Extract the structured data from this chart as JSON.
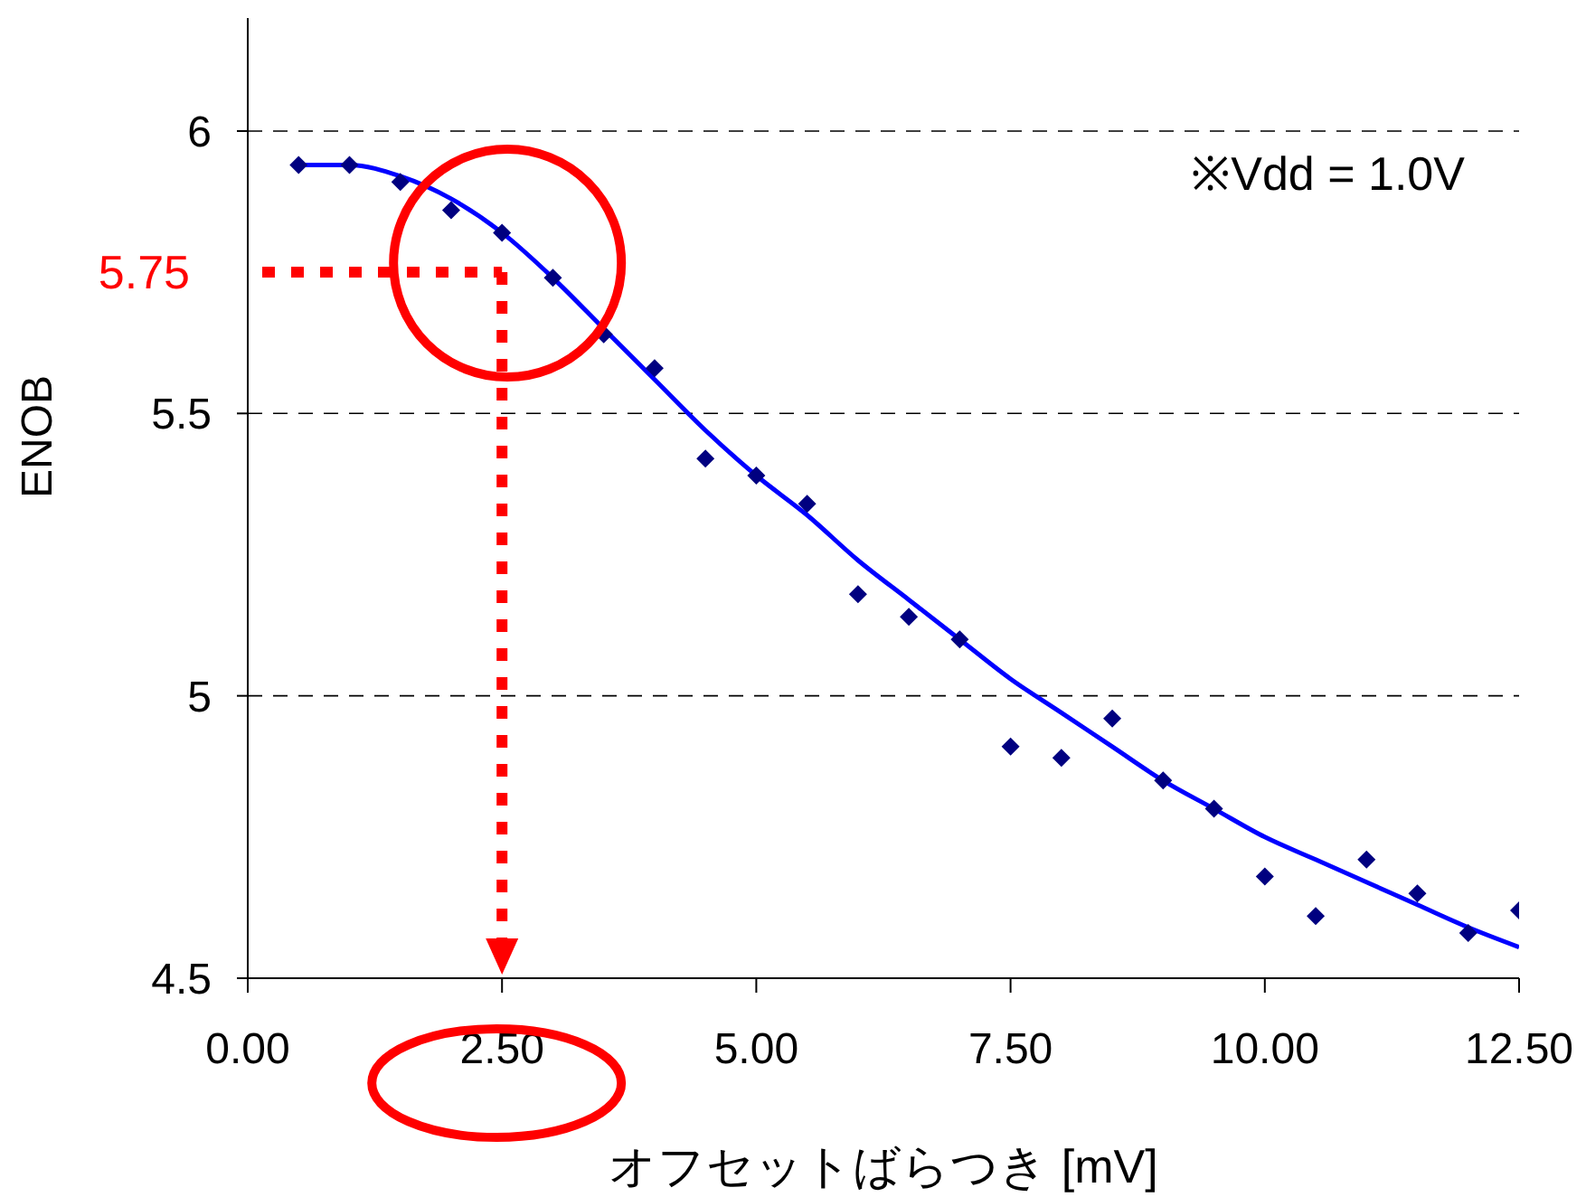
{
  "chart_data": {
    "type": "scatter",
    "xlabel": "オフセットばらつき [mV]",
    "ylabel": "ENOB",
    "xlim": [
      0,
      12.5
    ],
    "xticks": [
      {
        "value": 0,
        "label": "0.00"
      },
      {
        "value": 2.5,
        "label": "2.50"
      },
      {
        "value": 5,
        "label": "5.00"
      },
      {
        "value": 7.5,
        "label": "7.50"
      },
      {
        "value": 10,
        "label": "10.00"
      },
      {
        "value": 12.5,
        "label": "12.50"
      }
    ],
    "ylim": [
      4.5,
      6.2
    ],
    "yticks": [
      4.5,
      5,
      5.5,
      6
    ],
    "grid": "y",
    "marker": "diamond",
    "series": [
      {
        "color": "#000080",
        "x": [
          0.5,
          1,
          1.5,
          2,
          2.5,
          3,
          3.5,
          4,
          4.5,
          5,
          5.5,
          6,
          6.5,
          7,
          7.5,
          8,
          8.5,
          9,
          9.5,
          10,
          10.5,
          11,
          11.5,
          12,
          12.5
        ],
        "values": [
          5.94,
          5.94,
          5.91,
          5.86,
          5.82,
          5.74,
          5.64,
          5.58,
          5.42,
          5.39,
          5.34,
          5.18,
          5.14,
          5.1,
          4.91,
          4.89,
          4.96,
          4.85,
          4.8,
          4.68,
          4.61,
          4.71,
          4.65,
          4.58,
          4.62
        ]
      },
      {
        "type": "line",
        "color": "#0000ff",
        "marker": "none",
        "x": [
          0.5,
          1,
          1.5,
          2,
          2.5,
          3,
          3.5,
          4,
          4.5,
          5,
          5.5,
          6,
          6.5,
          7,
          7.5,
          8,
          8.5,
          9,
          9.5,
          10,
          10.5,
          11,
          11.5,
          12,
          12.5
        ],
        "values": [
          5.94,
          5.94,
          5.92,
          5.88,
          5.82,
          5.74,
          5.65,
          5.56,
          5.47,
          5.39,
          5.32,
          5.24,
          5.17,
          5.1,
          5.03,
          4.97,
          4.91,
          4.85,
          4.8,
          4.75,
          4.71,
          4.67,
          4.63,
          4.59,
          4.555
        ]
      }
    ],
    "ref_lines": [
      {
        "axis": "y",
        "value": 5.75,
        "label": "5.75",
        "color": "#ff0000",
        "line_style": "dotted"
      },
      {
        "axis": "x",
        "value": 2.5,
        "color": "#ff0000",
        "line_style": "dotted"
      }
    ],
    "annotations": [
      "※Vdd = 1.0V"
    ]
  }
}
